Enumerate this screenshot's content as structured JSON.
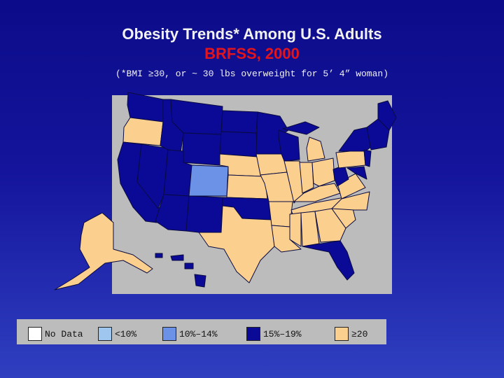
{
  "title": "Obesity Trends* Among U.S. Adults",
  "subtitle": "BRFSS, 2000",
  "footnote": "(*BMI ≥30, or ~ 30 lbs overweight for 5’ 4” woman)",
  "colors": {
    "no_data": "#ffffff",
    "lt10": "#9fc6ee",
    "r10_14": "#6b92e6",
    "r15_19": "#0a0a96",
    "ge20": "#fbd08f"
  },
  "legend": [
    {
      "label": "No Data",
      "color": "#ffffff"
    },
    {
      "label": "<10%",
      "color": "#9fc6ee"
    },
    {
      "label": "10%–14%",
      "color": "#6b92e6"
    },
    {
      "label": "15%–19%",
      "color": "#0a0a96"
    },
    {
      "label": "≥20",
      "color": "#fbd08f"
    }
  ]
}
